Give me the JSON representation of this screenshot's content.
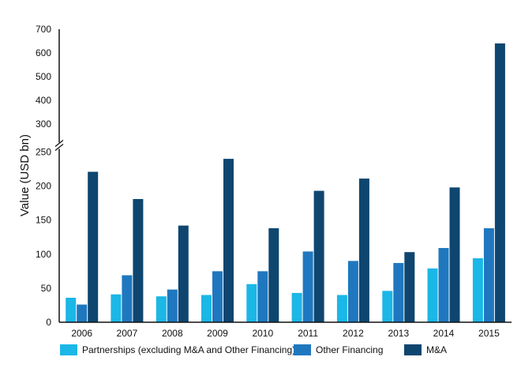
{
  "chart_data": {
    "type": "bar",
    "title": "",
    "xlabel": "",
    "ylabel": "Value (USD bn)",
    "categories": [
      "2006",
      "2007",
      "2008",
      "2009",
      "2010",
      "2011",
      "2012",
      "2013",
      "2014",
      "2015"
    ],
    "series": [
      {
        "name": "Partnerships (excluding M&A and Other Financing)",
        "color": "#1bb7e6",
        "values": [
          36,
          41,
          38,
          40,
          56,
          43,
          40,
          46,
          79,
          94
        ]
      },
      {
        "name": "Other Financing",
        "color": "#1f78bf",
        "values": [
          26,
          69,
          48,
          75,
          75,
          104,
          90,
          87,
          109,
          138
        ]
      },
      {
        "name": "M&A",
        "color": "#0e4670",
        "values": [
          221,
          181,
          142,
          240,
          138,
          193,
          211,
          103,
          198,
          640
        ]
      }
    ],
    "ylim": [
      0,
      700
    ],
    "axis_break": [
      250,
      300
    ],
    "yticks": [
      0,
      50,
      100,
      150,
      200,
      250,
      300,
      400,
      500,
      600,
      700
    ],
    "grid": false,
    "legend_position": "bottom"
  }
}
